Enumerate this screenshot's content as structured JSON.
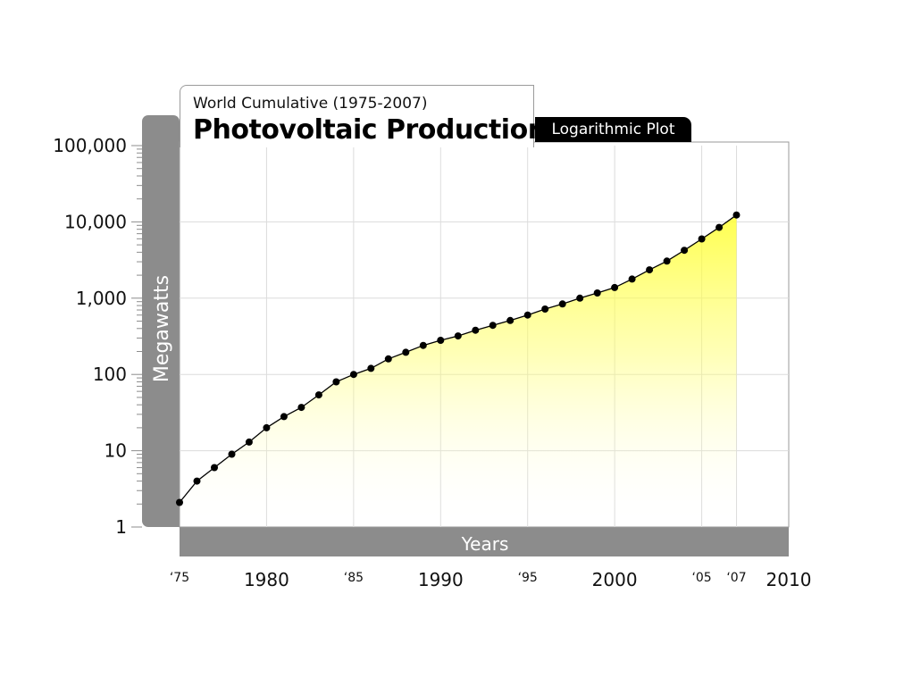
{
  "chart_data": {
    "type": "line",
    "subtitle": "World Cumulative (1975-2007)",
    "title": "Photovoltaic Production",
    "badge": "Logarithmic Plot",
    "ylabel": "Megawatts",
    "xlabel": "Years",
    "yscale": "log",
    "ylim": [
      1,
      100000
    ],
    "xlim": [
      1975,
      2010
    ],
    "yticks": [
      {
        "value": 1,
        "label": "1"
      },
      {
        "value": 10,
        "label": "10"
      },
      {
        "value": 100,
        "label": "100"
      },
      {
        "value": 1000,
        "label": "1,000"
      },
      {
        "value": 10000,
        "label": "10,000"
      },
      {
        "value": 100000,
        "label": "100,000"
      }
    ],
    "xticks": [
      {
        "value": 1975,
        "label": "‘75",
        "size": "small"
      },
      {
        "value": 1980,
        "label": "1980",
        "size": "large"
      },
      {
        "value": 1985,
        "label": "‘85",
        "size": "small"
      },
      {
        "value": 1990,
        "label": "1990",
        "size": "large"
      },
      {
        "value": 1995,
        "label": "‘95",
        "size": "small"
      },
      {
        "value": 2000,
        "label": "2000",
        "size": "large"
      },
      {
        "value": 2005,
        "label": "‘05",
        "size": "small"
      },
      {
        "value": 2007,
        "label": "‘07",
        "size": "small"
      },
      {
        "value": 2010,
        "label": "2010",
        "size": "large"
      }
    ],
    "grid": true,
    "series": [
      {
        "x": [
          1975,
          1976,
          1977,
          1978,
          1979,
          1980,
          1981,
          1982,
          1983,
          1984,
          1985,
          1986,
          1987,
          1988,
          1989,
          1990,
          1991,
          1992,
          1993,
          1994,
          1995,
          1996,
          1997,
          1998,
          1999,
          2000,
          2001,
          2002,
          2003,
          2004,
          2005,
          2006,
          2007
        ],
        "y": [
          2.1,
          4,
          6,
          9,
          13,
          20,
          28,
          37,
          54,
          80,
          100,
          120,
          160,
          195,
          240,
          280,
          320,
          380,
          440,
          510,
          600,
          720,
          840,
          1000,
          1170,
          1380,
          1780,
          2350,
          3060,
          4240,
          5980,
          8460,
          12300
        ]
      }
    ]
  },
  "colors": {
    "frame_gray": "#8c8c8c",
    "marker": "#000000",
    "line": "#000000",
    "fill": "#ffff00",
    "badge_bg": "#000000",
    "badge_text": "#ffffff"
  }
}
